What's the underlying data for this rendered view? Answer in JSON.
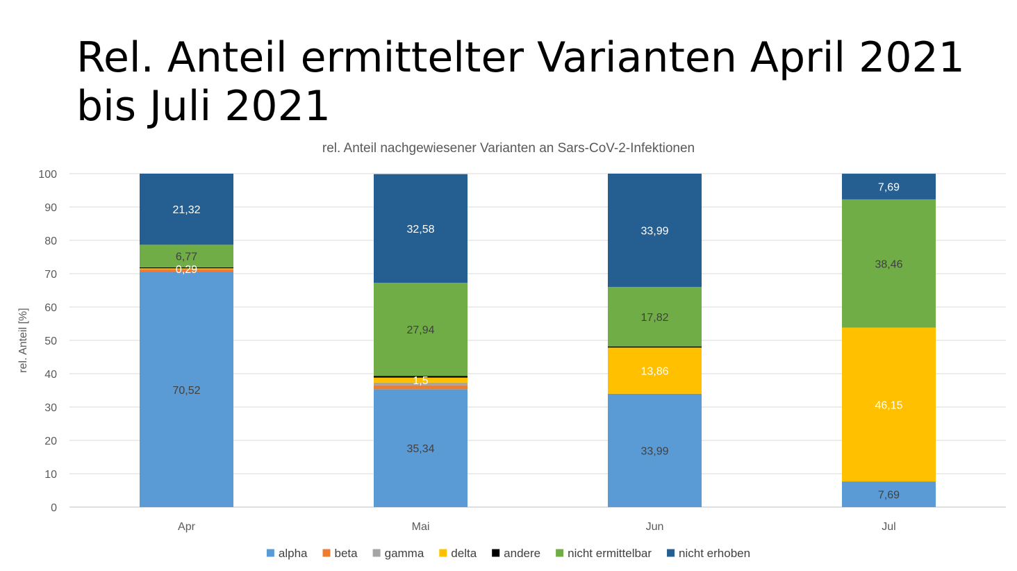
{
  "slide_title": "Rel. Anteil ermittelter Varianten April 2021 bis Juli 2021",
  "chart_data": {
    "type": "bar",
    "stacked": true,
    "title": "rel. Anteil nachgewiesener Varianten an Sars-CoV-2-Infektionen",
    "xlabel": "",
    "ylabel": "rel. Anteil [%]",
    "ylim": [
      0,
      100
    ],
    "yticks": [
      0,
      10,
      20,
      30,
      40,
      50,
      60,
      70,
      80,
      90,
      100
    ],
    "grid": true,
    "legend_position": "bottom",
    "categories": [
      "Apr",
      "Mai",
      "Jun",
      "Jul"
    ],
    "series": [
      {
        "name": "alpha",
        "color": "#5B9BD5",
        "values": [
          70.52,
          35.34,
          33.99,
          7.69
        ],
        "labels": [
          "70,52",
          "35,34",
          "33,99",
          "7,69"
        ],
        "label_color": "#404040"
      },
      {
        "name": "beta",
        "color": "#ED7D31",
        "values": [
          0.8,
          1.2,
          0,
          0
        ],
        "labels": [
          "",
          "",
          "",
          ""
        ],
        "label_color": "#404040"
      },
      {
        "name": "gamma",
        "color": "#A5A5A5",
        "values": [
          0,
          0.8,
          0,
          0
        ],
        "labels": [
          "",
          "",
          "",
          ""
        ],
        "label_color": "#404040"
      },
      {
        "name": "delta",
        "color": "#FFC000",
        "values": [
          0.29,
          1.5,
          13.86,
          46.15
        ],
        "labels": [
          "0,29",
          "1,5",
          "13,86",
          "46,15"
        ],
        "label_color": "#ffffff"
      },
      {
        "name": "andere",
        "color": "#000000",
        "values": [
          0.3,
          0.5,
          0.34,
          0
        ],
        "labels": [
          "",
          "",
          "",
          ""
        ],
        "label_color": "#404040"
      },
      {
        "name": "nicht ermittelbar",
        "color": "#70AD47",
        "values": [
          6.77,
          27.94,
          17.82,
          38.46
        ],
        "labels": [
          "6,77",
          "27,94",
          "17,82",
          "38,46"
        ],
        "label_color": "#404040"
      },
      {
        "name": "nicht erhoben",
        "color": "#255E91",
        "values": [
          21.32,
          32.58,
          33.99,
          7.69
        ],
        "labels": [
          "21,32",
          "32,58",
          "33,99",
          "7,69"
        ],
        "label_color": "#ffffff"
      }
    ]
  }
}
